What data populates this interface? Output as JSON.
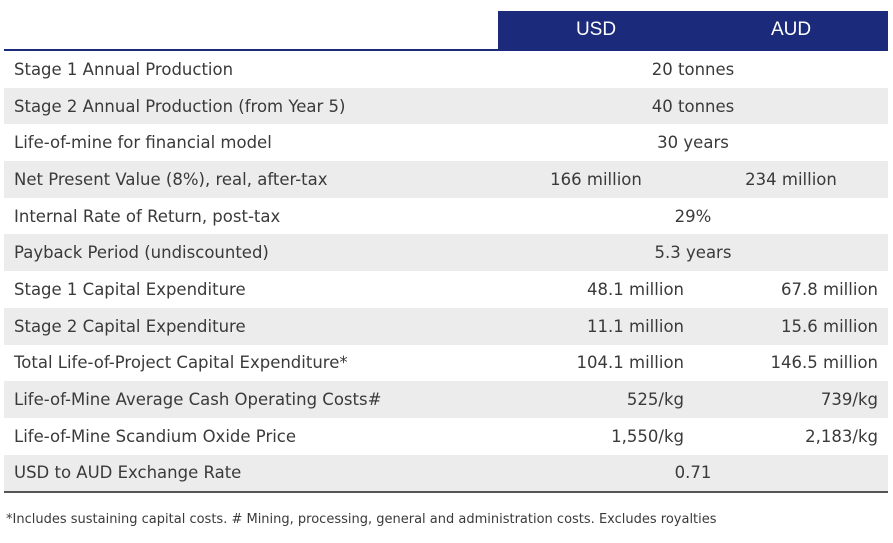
{
  "header": {
    "usd": "USD",
    "aud": "AUD"
  },
  "rows": [
    {
      "label": "Stage 1 Annual Production",
      "value": "20 tonnes"
    },
    {
      "label": "Stage 2 Annual Production (from Year 5)",
      "value": "40 tonnes"
    },
    {
      "label": "Life-of-mine for financial model",
      "value": "30 years"
    },
    {
      "label": "Net Present Value (8%), real, after-tax",
      "usd": "166 million",
      "aud": "234 million"
    },
    {
      "label": "Internal Rate of Return, post-tax",
      "value": "29%"
    },
    {
      "label": "Payback Period (undiscounted)",
      "value": "5.3 years"
    },
    {
      "label": "Stage 1 Capital Expenditure",
      "usd": "48.1 million",
      "aud": "67.8 million"
    },
    {
      "label": "Stage 2 Capital Expenditure",
      "usd": "11.1 million",
      "aud": "15.6 million"
    },
    {
      "label": "Total Life-of-Project Capital Expenditure*",
      "usd": "104.1 million",
      "aud": "146.5 million"
    },
    {
      "label": "Life-of-Mine Average Cash Operating Costs#",
      "usd": "525/kg",
      "aud": "739/kg"
    },
    {
      "label": "Life-of-Mine Scandium Oxide Price",
      "usd": "1,550/kg",
      "aud": "2,183/kg"
    },
    {
      "label": "USD to AUD Exchange Rate",
      "value": "0.71"
    }
  ],
  "footnote": "*Includes sustaining capital costs. # Mining, processing, general and administration costs. Excludes royalties",
  "colors": {
    "header_bg": "#1b2a7a",
    "shaded_row": "#ececec"
  }
}
